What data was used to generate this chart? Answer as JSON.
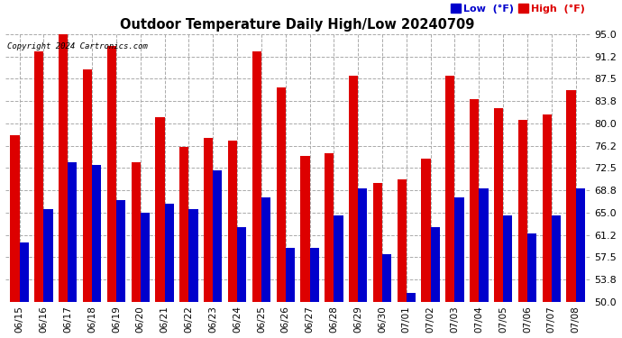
{
  "title": "Outdoor Temperature Daily High/Low 20240709",
  "copyright": "Copyright 2024 Cartronics.com",
  "dates": [
    "06/15",
    "06/16",
    "06/17",
    "06/18",
    "06/19",
    "06/20",
    "06/21",
    "06/22",
    "06/23",
    "06/24",
    "06/25",
    "06/26",
    "06/27",
    "06/28",
    "06/29",
    "06/30",
    "07/01",
    "07/02",
    "07/03",
    "07/04",
    "07/05",
    "07/06",
    "07/07",
    "07/08"
  ],
  "highs": [
    78.0,
    92.0,
    95.0,
    89.0,
    93.0,
    73.5,
    81.0,
    76.0,
    77.5,
    77.0,
    92.0,
    86.0,
    74.5,
    75.0,
    88.0,
    70.0,
    70.5,
    74.0,
    88.0,
    84.0,
    82.5,
    80.5,
    81.5,
    85.5
  ],
  "lows": [
    60.0,
    65.5,
    73.5,
    73.0,
    67.0,
    65.0,
    66.5,
    65.5,
    72.0,
    62.5,
    67.5,
    59.0,
    59.0,
    64.5,
    69.0,
    58.0,
    51.5,
    62.5,
    67.5,
    69.0,
    64.5,
    61.5,
    64.5,
    69.0
  ],
  "high_color": "#dd0000",
  "low_color": "#0000cc",
  "bg_color": "#ffffff",
  "grid_color": "#aaaaaa",
  "yticks": [
    50.0,
    53.8,
    57.5,
    61.2,
    65.0,
    68.8,
    72.5,
    76.2,
    80.0,
    83.8,
    87.5,
    91.2,
    95.0
  ],
  "ylim": [
    50.0,
    95.0
  ],
  "ybase": 50.0,
  "bar_width": 0.38
}
